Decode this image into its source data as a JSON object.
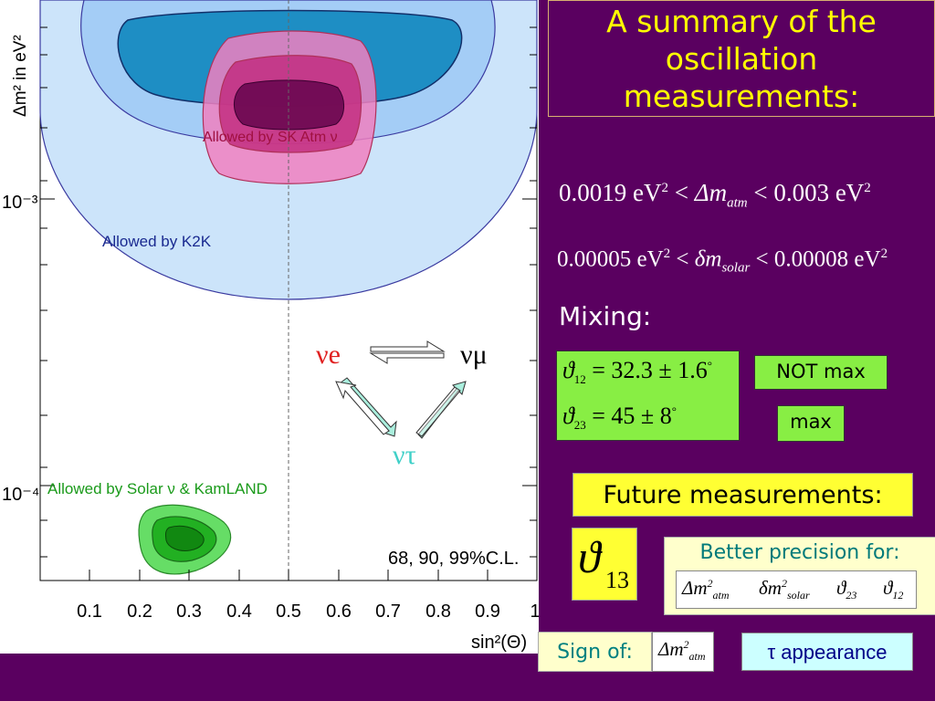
{
  "title": "A summary of the oscillation measurements:",
  "plot": {
    "y_axis_label": "Δm² in eV²",
    "y_ticks": [
      "10⁻³",
      "10⁻⁴"
    ],
    "x_ticks": [
      "0.1",
      "0.2",
      "0.3",
      "0.4",
      "0.5",
      "0.6",
      "0.7",
      "0.8",
      "0.9",
      "1"
    ],
    "x_axis_label": "sin²(Θ)",
    "region_k2k_label": "Allowed  by K2K",
    "region_sk_label": "Allowed  by SK Atm ν",
    "region_solar_label": "Allowed  by Solar ν & KamLAND",
    "confidence_label": "68, 90, 99%C.L.",
    "colors": {
      "k2k": "#cce4fa",
      "sk": "#e0308a",
      "solar": "#33bb33"
    }
  },
  "flavors": {
    "nu_e": "νe",
    "nu_mu": "νμ",
    "nu_tau": "ντ"
  },
  "formula_atm": {
    "low": "0.0019 eV",
    "symbol": "Δm",
    "sub": "atm",
    "high": "0.003 eV",
    "sup": "2",
    "lt": "<"
  },
  "formula_solar": {
    "low": "0.00005 eV",
    "symbol": "δm",
    "sub": "solar",
    "high": "0.00008 eV",
    "sup": "2",
    "lt": "<"
  },
  "mixing": {
    "label": "Mixing:",
    "theta12": {
      "sym": "ϑ",
      "sub": "12",
      "value": "= 32.3 ± 1.6",
      "deg": "°"
    },
    "theta23": {
      "sym": "ϑ",
      "sub": "23",
      "value": "= 45 ± 8",
      "deg": "°"
    },
    "not_max": "NOT max",
    "max": "max"
  },
  "future": {
    "title": "Future measurements:",
    "theta13_sym": "ϑ",
    "theta13_sub": "13",
    "better_label": "Better precision for:",
    "items": [
      {
        "sym": "Δm",
        "sup": "2",
        "sub": "atm"
      },
      {
        "sym": "δm",
        "sup": "2",
        "sub": "solar"
      },
      {
        "sym": "ϑ",
        "sub": "23"
      },
      {
        "sym": "ϑ",
        "sub": "12"
      }
    ],
    "sign_of": "Sign of:",
    "sign_sym": "Δm",
    "sign_sup": "2",
    "sign_sub": "atm",
    "tau_appearance": "τ appearance"
  }
}
